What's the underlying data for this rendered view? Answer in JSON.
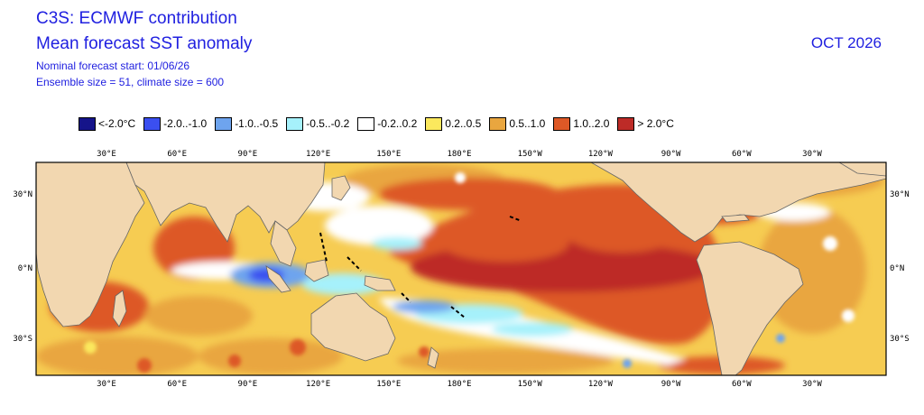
{
  "header": {
    "title_line1": "C3S: ECMWF contribution",
    "title_line2": "Mean forecast SST anomaly",
    "start_line": "Nominal forecast start: 01/06/26",
    "ensemble_line": "Ensemble size = 51, climate size = 600",
    "date": "OCT 2026"
  },
  "legend": [
    {
      "label": "<-2.0°C",
      "color": "#15148a"
    },
    {
      "label": "-2.0..-1.0",
      "color": "#3b4ff0"
    },
    {
      "label": "-1.0..-0.5",
      "color": "#6ea4ee"
    },
    {
      "label": "-0.5..-0.2",
      "color": "#a6f1fb"
    },
    {
      "label": "-0.2..0.2",
      "color": "#ffffff"
    },
    {
      "label": "0.2..0.5",
      "color": "#fbe85d"
    },
    {
      "label": "0.5..1.0",
      "color": "#e9a63f"
    },
    {
      "label": "1.0..2.0",
      "color": "#dd5826"
    },
    {
      "label": "> 2.0°C",
      "color": "#bd2b27"
    }
  ],
  "map": {
    "land_color": "#f2d7b0",
    "lon_labels_top": [
      "30°E",
      "60°E",
      "90°E",
      "120°E",
      "150°E",
      "180°E",
      "150°W",
      "120°W",
      "90°W",
      "60°W",
      "30°W"
    ],
    "lon_labels_bottom": [
      "30°E",
      "60°E",
      "90°E",
      "120°E",
      "150°E",
      "180°E",
      "150°W",
      "120°W",
      "90°W",
      "60°W",
      "30°W"
    ],
    "lat_labels_left": [
      "30°N",
      "0°N",
      "30°S"
    ],
    "lat_labels_right": [
      "30°N",
      "0°N",
      "30°S"
    ]
  }
}
